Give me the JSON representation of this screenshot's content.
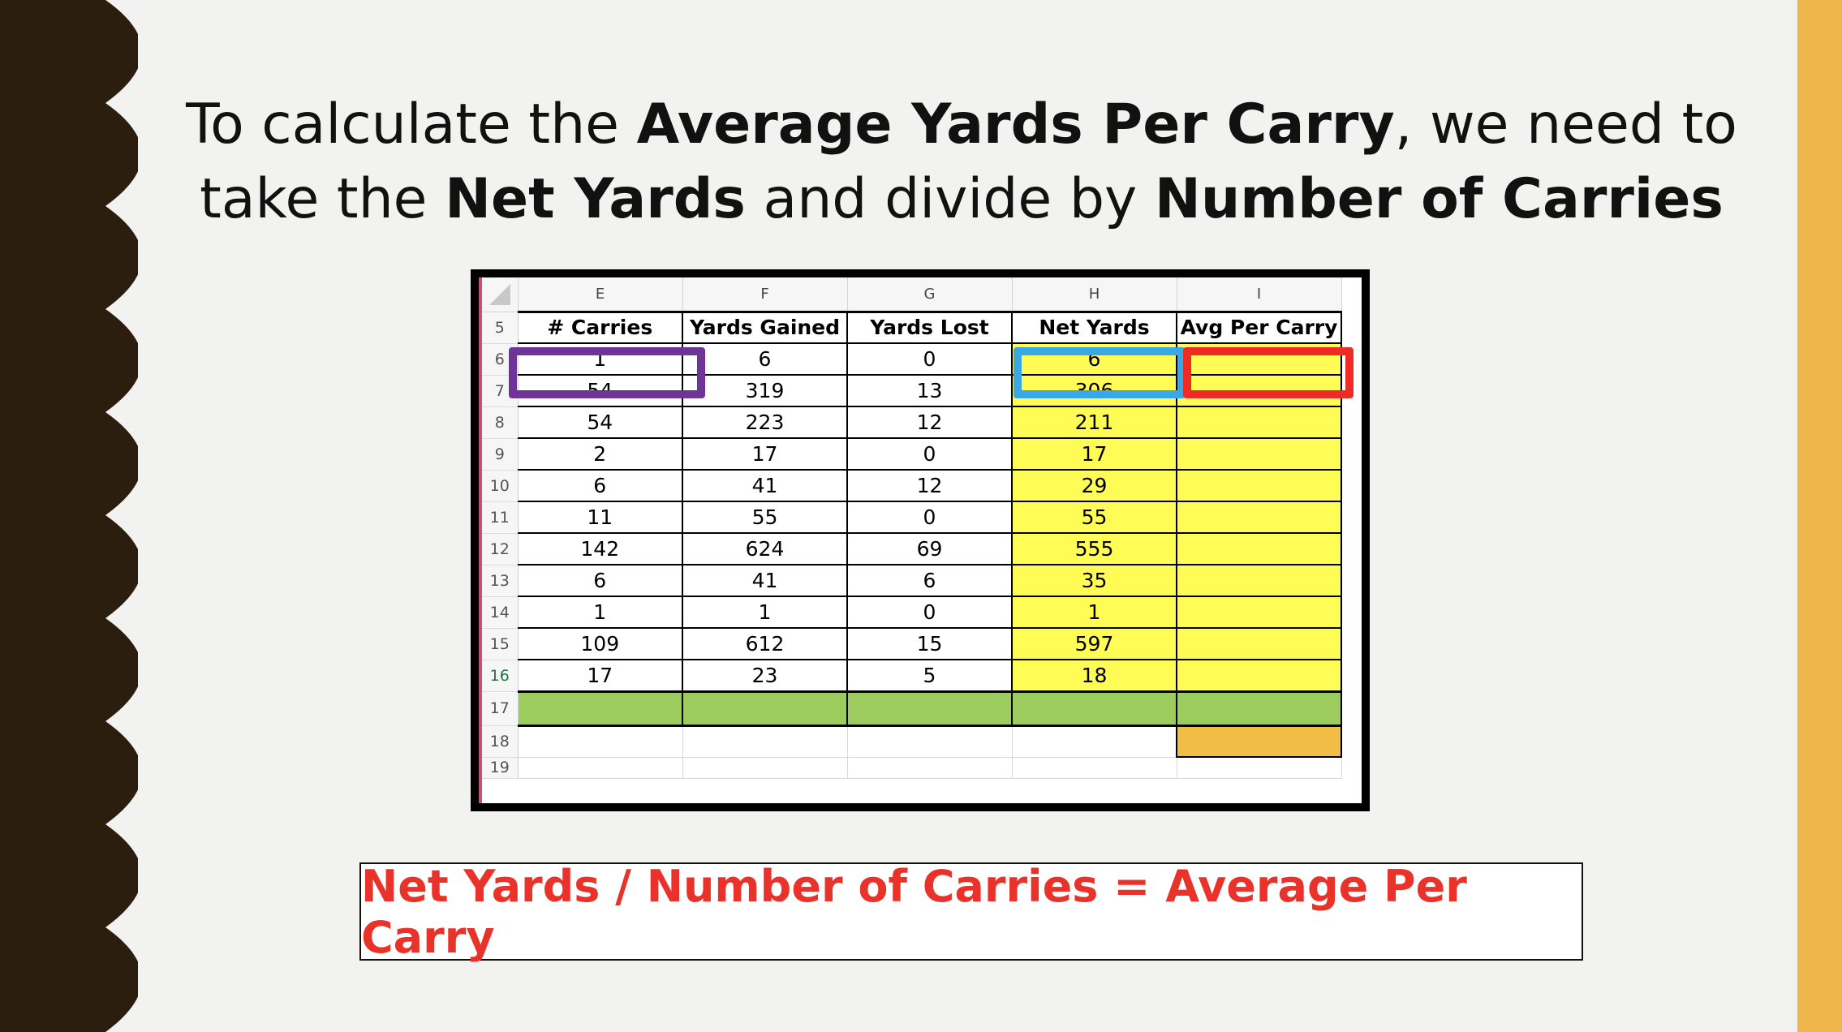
{
  "slide": {
    "heading": {
      "line1": {
        "pre": "To calculate the ",
        "bold": "Average Yards Per Carry",
        "post": ", we need to"
      },
      "line2": {
        "pre": "take the ",
        "bold1": "Net Yards",
        "mid": " and divide by ",
        "bold2": "Number of Carries"
      }
    },
    "formula": "Net Yards / Number of Carries = Average Per Carry",
    "colors": {
      "background": "#f2f2f0",
      "left_wave": "#2b1e0e",
      "right_bar": "#eeb54a",
      "highlight_yellow": "#fffc56",
      "total_row_green": "#9ccc5e",
      "result_orange": "#f2bd45",
      "purple_box": "#6e3496",
      "blue_box": "#3aa8e4",
      "red_box": "#ee2b24",
      "formula_text": "#e8322a"
    }
  },
  "spreadsheet": {
    "column_letters": [
      "E",
      "F",
      "G",
      "H",
      "I"
    ],
    "header_row_number": "5",
    "headers": [
      "# Carries",
      "Yards Gained",
      "Yards Lost",
      "Net Yards",
      "Avg Per Carry"
    ],
    "rows": [
      {
        "num": "6",
        "cells": [
          "1",
          "6",
          "0",
          "6",
          ""
        ]
      },
      {
        "num": "7",
        "cells": [
          "54",
          "319",
          "13",
          "306",
          ""
        ]
      },
      {
        "num": "8",
        "cells": [
          "54",
          "223",
          "12",
          "211",
          ""
        ]
      },
      {
        "num": "9",
        "cells": [
          "2",
          "17",
          "0",
          "17",
          ""
        ]
      },
      {
        "num": "10",
        "cells": [
          "6",
          "41",
          "12",
          "29",
          ""
        ]
      },
      {
        "num": "11",
        "cells": [
          "11",
          "55",
          "0",
          "55",
          ""
        ]
      },
      {
        "num": "12",
        "cells": [
          "142",
          "624",
          "69",
          "555",
          ""
        ]
      },
      {
        "num": "13",
        "cells": [
          "6",
          "41",
          "6",
          "35",
          ""
        ]
      },
      {
        "num": "14",
        "cells": [
          "1",
          "1",
          "0",
          "1",
          ""
        ]
      },
      {
        "num": "15",
        "cells": [
          "109",
          "612",
          "15",
          "597",
          ""
        ]
      },
      {
        "num": "16",
        "cells": [
          "17",
          "23",
          "5",
          "18",
          ""
        ]
      }
    ],
    "total_row_number": "17",
    "result_row_number": "18",
    "partial_row_number": "19"
  }
}
